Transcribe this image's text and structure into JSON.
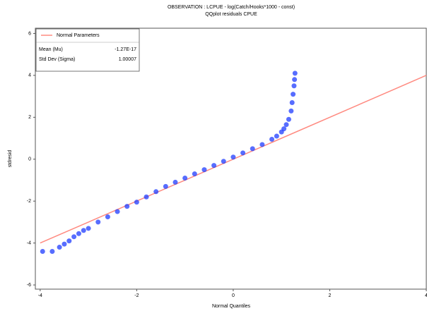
{
  "chart_data": {
    "type": "scatter",
    "title": "OBSERVATION : LCPUE - log(Catch/Hooks*1000 - const)",
    "subtitle": "QQplot residuals CPUE",
    "x_label": "Normal Quantiles",
    "y_label": "stdresid",
    "xlim": [
      -4.1,
      4.0
    ],
    "ylim": [
      -6.2,
      6.25
    ],
    "xticks": [
      -4,
      -2,
      0,
      2,
      4
    ],
    "yticks": [
      -6,
      -4,
      -2,
      0,
      2,
      4,
      6
    ],
    "reference_line": {
      "name": "Normal Parameters",
      "color": "#ff8a80",
      "x": [
        -4,
        4
      ],
      "y": [
        -4,
        4
      ]
    },
    "legend_stats": [
      {
        "label": "Mean (Mu)",
        "value": "-1.27E-17"
      },
      {
        "label": "Std Dev (Sigma)",
        "value": "1.00007"
      }
    ],
    "series": [
      {
        "color": "#1f3cff",
        "x": [
          -3.95,
          -3.75,
          -3.6,
          -3.5,
          -3.4,
          -3.3,
          -3.2,
          -3.1,
          -3.0,
          -2.8,
          -2.6,
          -2.4,
          -2.2,
          -2.0,
          -1.8,
          -1.6,
          -1.4,
          -1.2,
          -1.0,
          -0.8,
          -0.6,
          -0.4,
          -0.2,
          0,
          0.2,
          0.4,
          0.6,
          0.8,
          0.9,
          1.0,
          1.05,
          1.1,
          1.15,
          1.2,
          1.22,
          1.24,
          1.26,
          1.27,
          1.28
        ],
        "values": [
          -4.4,
          -4.4,
          -4.2,
          -4.05,
          -3.9,
          -3.7,
          -3.55,
          -3.4,
          -3.3,
          -3.0,
          -2.75,
          -2.5,
          -2.25,
          -2.05,
          -1.8,
          -1.55,
          -1.3,
          -1.1,
          -0.9,
          -0.7,
          -0.5,
          -0.3,
          -0.1,
          0.1,
          0.3,
          0.5,
          0.7,
          0.95,
          1.1,
          1.3,
          1.45,
          1.65,
          1.9,
          2.3,
          2.7,
          3.1,
          3.5,
          3.8,
          4.1
        ]
      }
    ]
  }
}
